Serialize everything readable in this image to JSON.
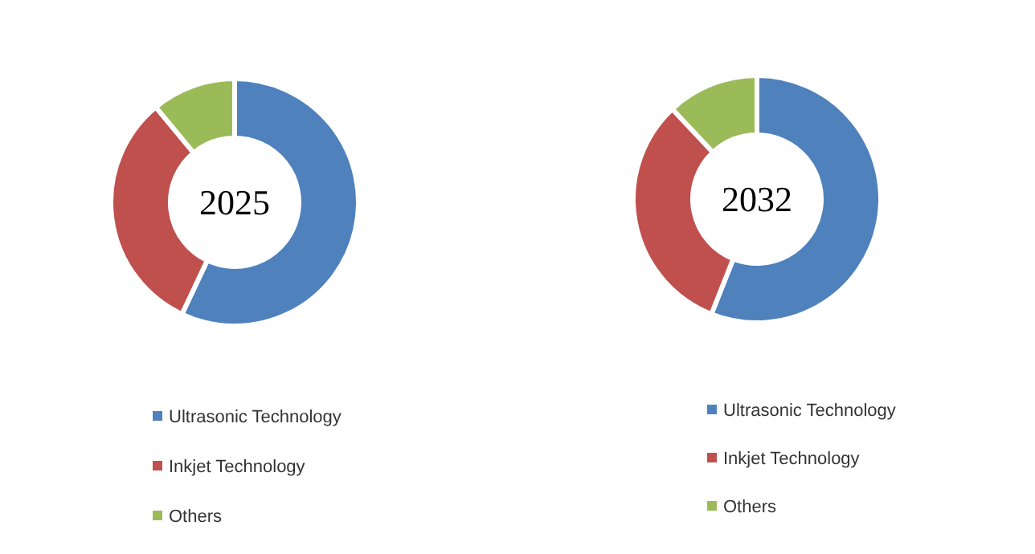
{
  "chart_data": [
    {
      "type": "donut",
      "title": "2025",
      "categories": [
        "Ultrasonic Technology",
        "Inkjet Technology",
        "Others"
      ],
      "values": [
        57,
        32,
        11
      ],
      "colors": [
        "#4f81bd",
        "#c0504d",
        "#9bbb59"
      ],
      "legend": "bottom"
    },
    {
      "type": "donut",
      "title": "2032",
      "categories": [
        "Ultrasonic Technology",
        "Inkjet Technology",
        "Others"
      ],
      "values": [
        56,
        32,
        12
      ],
      "colors": [
        "#4f81bd",
        "#c0504d",
        "#9bbb59"
      ],
      "legend": "bottom"
    }
  ]
}
